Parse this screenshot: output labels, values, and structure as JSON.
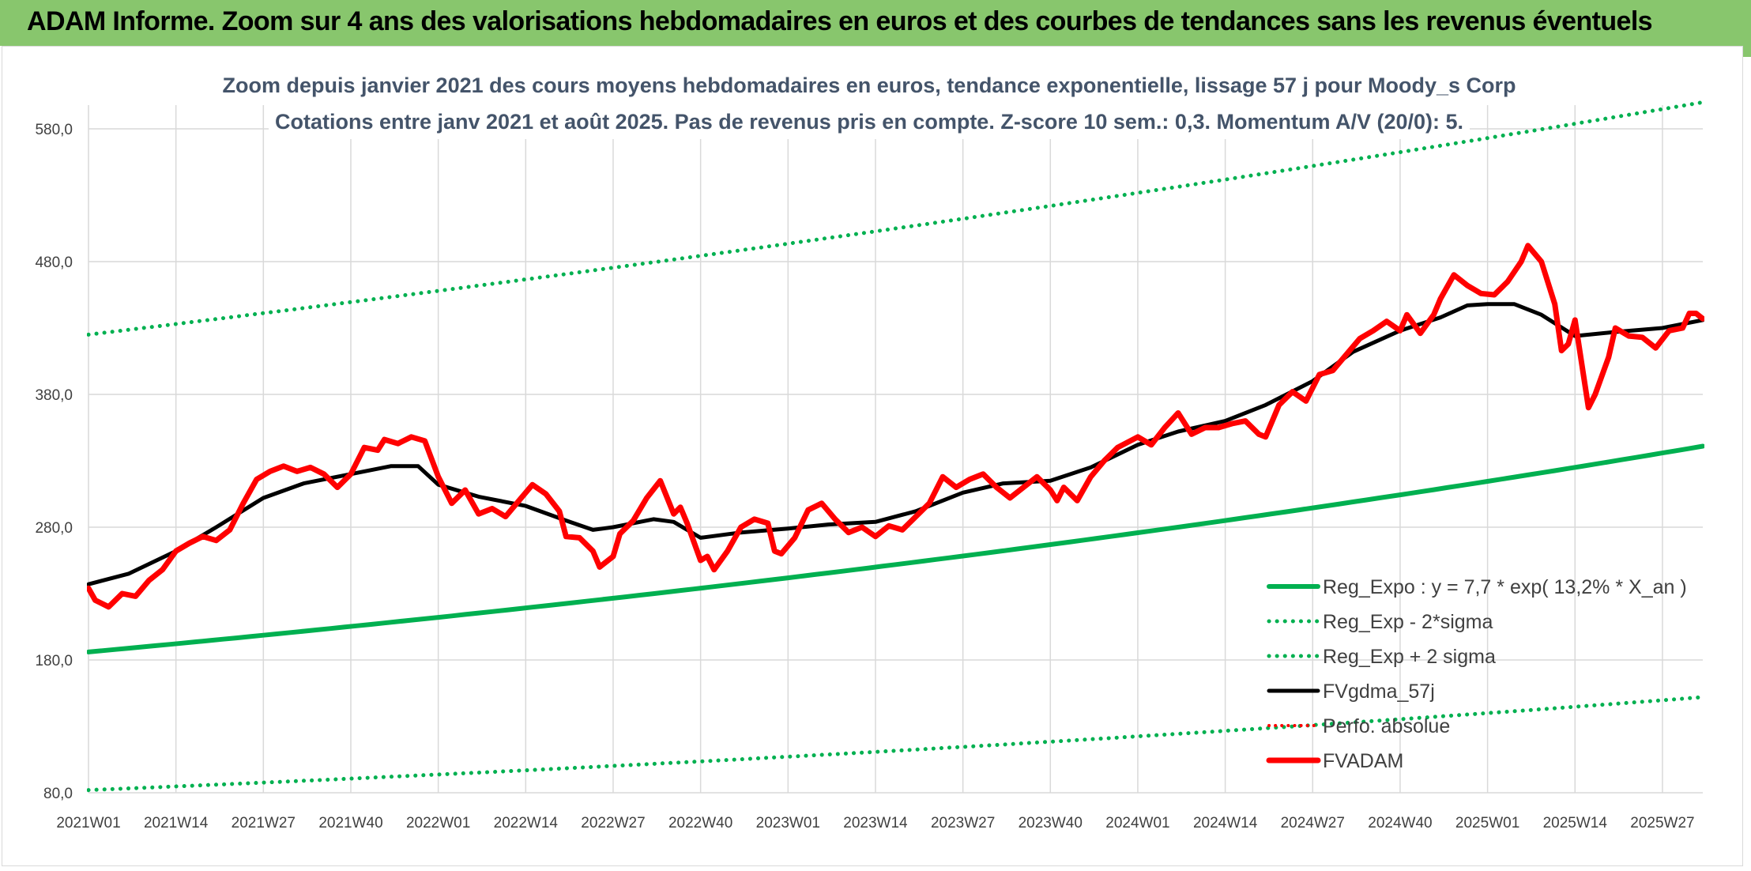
{
  "banner": {
    "title": "ADAM Informe. Zoom sur 4 ans des valorisations hebdomadaires en euros et des courbes de tendances sans les revenus éventuels"
  },
  "colors": {
    "banner": "#88c66d",
    "trend": "#00b050",
    "smoothed": "#000000",
    "price": "#ff0000",
    "perfo": "#ff0000",
    "title_text": "#44546a"
  },
  "chart_data": {
    "type": "line",
    "title": "Zoom depuis janvier 2021 des cours moyens hebdomadaires en euros, tendance exponentielle, lissage 57 j pour Moody_s Corp",
    "subtitle": "Cotations entre janv 2021 et août 2025. Pas de revenus pris en compte. Z-score 10 sem.: 0,3. Momentum A/V (20/0): 5.",
    "ylim": [
      80,
      580
    ],
    "yticks": [
      "80,0",
      "180,0",
      "280,0",
      "380,0",
      "480,0",
      "580,0"
    ],
    "xticks": [
      "2021W01",
      "2021W14",
      "2021W27",
      "2021W40",
      "2022W01",
      "2022W14",
      "2022W27",
      "2022W40",
      "2023W01",
      "2023W14",
      "2023W27",
      "2023W40",
      "2024W01",
      "2024W14",
      "2024W27",
      "2024W40",
      "2025W01",
      "2025W14",
      "2025W27"
    ],
    "x_start": "2021W01",
    "x_end": "2025W33",
    "grid": true,
    "legend_position": "bottom-right",
    "trend_model": {
      "a": 7.7,
      "rate": 0.132
    },
    "series": [
      {
        "name": "Reg_Expo : y = 7,7 * exp( 13,2% *  X_an )",
        "style": "solid-green",
        "points": [
          [
            "2021W01",
            186
          ],
          [
            "2025W33",
            341
          ]
        ]
      },
      {
        "name": "Reg_Exp - 2*sigma",
        "style": "dotted-green",
        "points": [
          [
            "2021W01",
            82
          ],
          [
            "2025W33",
            152
          ]
        ]
      },
      {
        "name": "Reg_Exp + 2 sigma",
        "style": "dotted-green",
        "points": [
          [
            "2021W01",
            425
          ],
          [
            "2025W33",
            600
          ]
        ]
      },
      {
        "name": "FVgdma_57j",
        "style": "solid-black",
        "points": [
          [
            "2021W01",
            237
          ],
          [
            "2021W07",
            245
          ],
          [
            "2021W14",
            262
          ],
          [
            "2021W20",
            280
          ],
          [
            "2021W27",
            302
          ],
          [
            "2021W33",
            313
          ],
          [
            "2021W40",
            320
          ],
          [
            "2021W46",
            326
          ],
          [
            "2021W50",
            326
          ],
          [
            "2022W01",
            312
          ],
          [
            "2022W07",
            303
          ],
          [
            "2022W14",
            296
          ],
          [
            "2022W20",
            285
          ],
          [
            "2022W24",
            278
          ],
          [
            "2022W27",
            280
          ],
          [
            "2022W33",
            286
          ],
          [
            "2022W36",
            284
          ],
          [
            "2022W40",
            272
          ],
          [
            "2022W46",
            276
          ],
          [
            "2023W01",
            279
          ],
          [
            "2023W07",
            282
          ],
          [
            "2023W14",
            284
          ],
          [
            "2023W20",
            292
          ],
          [
            "2023W27",
            306
          ],
          [
            "2023W33",
            313
          ],
          [
            "2023W40",
            315
          ],
          [
            "2023W46",
            325
          ],
          [
            "2024W01",
            342
          ],
          [
            "2024W07",
            352
          ],
          [
            "2024W14",
            360
          ],
          [
            "2024W20",
            372
          ],
          [
            "2024W27",
            390
          ],
          [
            "2024W33",
            412
          ],
          [
            "2024W40",
            428
          ],
          [
            "2024W46",
            438
          ],
          [
            "2024W50",
            447
          ],
          [
            "2025W01",
            448
          ],
          [
            "2025W05",
            448
          ],
          [
            "2025W09",
            440
          ],
          [
            "2025W14",
            424
          ],
          [
            "2025W20",
            427
          ],
          [
            "2025W27",
            430
          ],
          [
            "2025W33",
            436
          ]
        ]
      },
      {
        "name": "Perfo. absolue",
        "style": "dotted-red",
        "points": []
      },
      {
        "name": "FVADAM",
        "style": "thick-red",
        "points": [
          [
            "2021W01",
            234
          ],
          [
            "2021W02",
            225
          ],
          [
            "2021W04",
            220
          ],
          [
            "2021W06",
            230
          ],
          [
            "2021W08",
            228
          ],
          [
            "2021W10",
            240
          ],
          [
            "2021W12",
            248
          ],
          [
            "2021W14",
            262
          ],
          [
            "2021W16",
            268
          ],
          [
            "2021W18",
            273
          ],
          [
            "2021W20",
            270
          ],
          [
            "2021W22",
            278
          ],
          [
            "2021W24",
            298
          ],
          [
            "2021W26",
            316
          ],
          [
            "2021W28",
            322
          ],
          [
            "2021W30",
            326
          ],
          [
            "2021W32",
            322
          ],
          [
            "2021W34",
            325
          ],
          [
            "2021W36",
            320
          ],
          [
            "2021W38",
            310
          ],
          [
            "2021W40",
            320
          ],
          [
            "2021W42",
            340
          ],
          [
            "2021W44",
            338
          ],
          [
            "2021W45",
            346
          ],
          [
            "2021W47",
            343
          ],
          [
            "2021W49",
            348
          ],
          [
            "2021W51",
            345
          ],
          [
            "2022W01",
            318
          ],
          [
            "2022W03",
            298
          ],
          [
            "2022W05",
            308
          ],
          [
            "2022W07",
            290
          ],
          [
            "2022W09",
            294
          ],
          [
            "2022W11",
            288
          ],
          [
            "2022W13",
            300
          ],
          [
            "2022W15",
            312
          ],
          [
            "2022W17",
            305
          ],
          [
            "2022W19",
            292
          ],
          [
            "2022W20",
            273
          ],
          [
            "2022W22",
            272
          ],
          [
            "2022W24",
            262
          ],
          [
            "2022W25",
            250
          ],
          [
            "2022W27",
            258
          ],
          [
            "2022W28",
            275
          ],
          [
            "2022W30",
            285
          ],
          [
            "2022W32",
            302
          ],
          [
            "2022W34",
            315
          ],
          [
            "2022W36",
            290
          ],
          [
            "2022W37",
            295
          ],
          [
            "2022W38",
            283
          ],
          [
            "2022W40",
            255
          ],
          [
            "2022W41",
            258
          ],
          [
            "2022W42",
            248
          ],
          [
            "2022W44",
            262
          ],
          [
            "2022W46",
            280
          ],
          [
            "2022W48",
            286
          ],
          [
            "2022W50",
            283
          ],
          [
            "2022W51",
            262
          ],
          [
            "2022W52",
            260
          ],
          [
            "2023W02",
            272
          ],
          [
            "2023W04",
            293
          ],
          [
            "2023W06",
            298
          ],
          [
            "2023W08",
            286
          ],
          [
            "2023W10",
            276
          ],
          [
            "2023W12",
            280
          ],
          [
            "2023W14",
            273
          ],
          [
            "2023W16",
            281
          ],
          [
            "2023W18",
            278
          ],
          [
            "2023W20",
            288
          ],
          [
            "2023W22",
            298
          ],
          [
            "2023W24",
            318
          ],
          [
            "2023W26",
            310
          ],
          [
            "2023W28",
            316
          ],
          [
            "2023W30",
            320
          ],
          [
            "2023W32",
            310
          ],
          [
            "2023W34",
            302
          ],
          [
            "2023W36",
            310
          ],
          [
            "2023W38",
            318
          ],
          [
            "2023W40",
            308
          ],
          [
            "2023W41",
            300
          ],
          [
            "2023W42",
            310
          ],
          [
            "2023W44",
            300
          ],
          [
            "2023W46",
            318
          ],
          [
            "2023W48",
            330
          ],
          [
            "2023W50",
            340
          ],
          [
            "2024W01",
            348
          ],
          [
            "2024W03",
            342
          ],
          [
            "2024W05",
            355
          ],
          [
            "2024W07",
            366
          ],
          [
            "2024W09",
            350
          ],
          [
            "2024W11",
            355
          ],
          [
            "2024W13",
            355
          ],
          [
            "2024W15",
            358
          ],
          [
            "2024W17",
            360
          ],
          [
            "2024W19",
            350
          ],
          [
            "2024W20",
            348
          ],
          [
            "2024W22",
            372
          ],
          [
            "2024W24",
            382
          ],
          [
            "2024W26",
            375
          ],
          [
            "2024W28",
            395
          ],
          [
            "2024W30",
            398
          ],
          [
            "2024W32",
            410
          ],
          [
            "2024W34",
            422
          ],
          [
            "2024W36",
            428
          ],
          [
            "2024W38",
            435
          ],
          [
            "2024W40",
            428
          ],
          [
            "2024W41",
            440
          ],
          [
            "2024W43",
            426
          ],
          [
            "2024W45",
            440
          ],
          [
            "2024W46",
            452
          ],
          [
            "2024W48",
            470
          ],
          [
            "2024W50",
            462
          ],
          [
            "2024W52",
            456
          ],
          [
            "2025W02",
            455
          ],
          [
            "2025W04",
            465
          ],
          [
            "2025W06",
            480
          ],
          [
            "2025W07",
            492
          ],
          [
            "2025W09",
            480
          ],
          [
            "2025W11",
            448
          ],
          [
            "2025W12",
            413
          ],
          [
            "2025W13",
            418
          ],
          [
            "2025W14",
            436
          ],
          [
            "2025W16",
            370
          ],
          [
            "2025W17",
            380
          ],
          [
            "2025W19",
            408
          ],
          [
            "2025W20",
            430
          ],
          [
            "2025W22",
            424
          ],
          [
            "2025W24",
            423
          ],
          [
            "2025W26",
            415
          ],
          [
            "2025W28",
            428
          ],
          [
            "2025W30",
            430
          ],
          [
            "2025W31",
            441
          ],
          [
            "2025W32",
            441
          ],
          [
            "2025W33",
            437
          ]
        ]
      }
    ]
  }
}
